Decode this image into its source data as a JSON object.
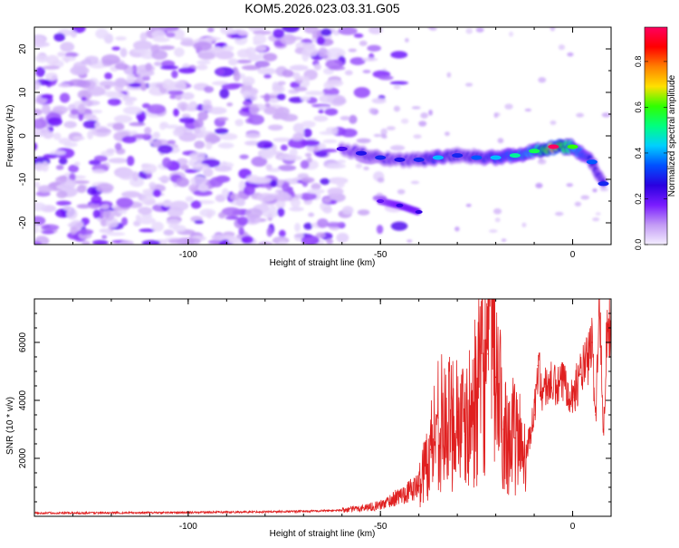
{
  "title": "KOM5.2026.023.03.31.G05",
  "colors": {
    "snr_line": "#e02020",
    "axis": "#000000",
    "background": "#ffffff"
  },
  "chart_data": [
    {
      "type": "heatmap",
      "name": "spectrogram",
      "xlabel": "Height of straight line (km)",
      "ylabel": "Frequency (Hz)",
      "xlim": [
        -140,
        10
      ],
      "ylim": [
        -25,
        25
      ],
      "xticks": [
        -100,
        -50,
        0
      ],
      "yticks": [
        -20,
        -10,
        0,
        10,
        20
      ],
      "grid": false,
      "colorbar": {
        "label": "Normalized spectral amplitude",
        "range": [
          0,
          0.95
        ],
        "ticks": [
          0.0,
          0.2,
          0.4,
          0.6,
          0.8
        ],
        "colormap": [
          "#f4eeff",
          "#c39bf5",
          "#7a1cff",
          "#2a00e0",
          "#0050ff",
          "#00d0ff",
          "#00ff80",
          "#30ff00",
          "#ffe000",
          "#ff8000",
          "#ff0000",
          "#ff0060"
        ]
      },
      "ridge": {
        "description": "dominant frequency ridge",
        "x": [
          -60,
          -55,
          -50,
          -45,
          -40,
          -35,
          -30,
          -25,
          -20,
          -15,
          -10,
          -5,
          0,
          5,
          8
        ],
        "y": [
          -3,
          -4,
          -5,
          -5.5,
          -5.5,
          -5,
          -4.5,
          -5,
          -5,
          -4.5,
          -3.5,
          -2.5,
          -2.5,
          -6,
          -11
        ],
        "amplitude": [
          0.22,
          0.28,
          0.3,
          0.28,
          0.3,
          0.42,
          0.3,
          0.35,
          0.42,
          0.5,
          0.55,
          0.95,
          0.6,
          0.35,
          0.3
        ]
      },
      "secondary": {
        "x": [
          -50,
          -45,
          -40
        ],
        "y": [
          -15,
          -16,
          -17.5
        ],
        "amplitude": [
          0.2,
          0.25,
          0.25
        ]
      },
      "noise_region_x": [
        -140,
        -60
      ]
    },
    {
      "type": "line",
      "name": "snr",
      "xlabel": "Height of straight line (km)",
      "ylabel": "SNR (10 * v/v)",
      "xlim": [
        -140,
        10
      ],
      "ylim": [
        0,
        7500
      ],
      "xticks": [
        -100,
        -50,
        0
      ],
      "yticks": [
        2000,
        4000,
        6000
      ],
      "grid": false,
      "series": [
        {
          "name": "SNR",
          "color": "#e02020",
          "x": [
            -140,
            -100,
            -70,
            -60,
            -55,
            -50,
            -45,
            -40,
            -37,
            -35,
            -33,
            -30,
            -28,
            -25,
            -22,
            -21,
            -20,
            -18,
            -15,
            -12,
            -10,
            -9,
            -8,
            -6,
            -4,
            -2,
            0,
            2,
            4,
            5,
            6,
            7,
            8,
            9,
            10
          ],
          "y": [
            110,
            130,
            170,
            210,
            280,
            380,
            700,
            1050,
            2300,
            3400,
            3000,
            3600,
            2800,
            4100,
            5600,
            7500,
            4800,
            3000,
            2700,
            2300,
            3500,
            5200,
            4300,
            4600,
            4400,
            4700,
            4100,
            4900,
            5400,
            6000,
            3500,
            7500,
            3000,
            6700,
            6400
          ]
        }
      ]
    }
  ]
}
